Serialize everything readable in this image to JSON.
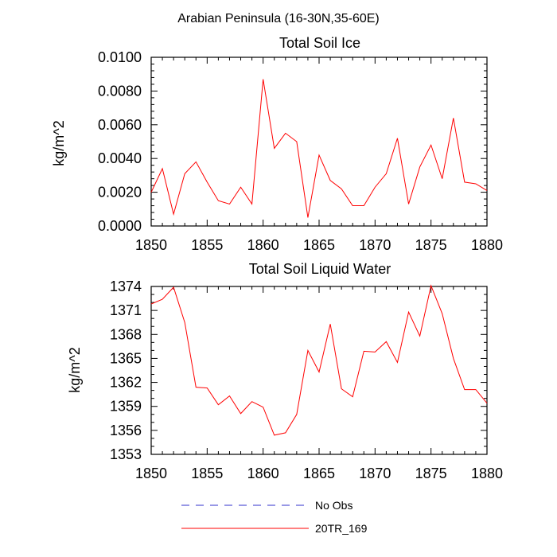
{
  "figure": {
    "suptitle": "Arabian Peninsula (16-30N,35-60E)"
  },
  "legend": {
    "entries": [
      {
        "label": "No Obs",
        "color": "#5a5ad8",
        "dash": "dashed"
      },
      {
        "label": "20TR_169",
        "color": "#ff0000",
        "dash": "solid"
      }
    ]
  },
  "chart_data": [
    {
      "type": "line",
      "title": "Total Soil Ice",
      "xlabel": "",
      "ylabel": "kg/m^2",
      "xlim": [
        1850,
        1880
      ],
      "ylim": [
        0.0,
        0.01
      ],
      "xticks": [
        1850,
        1855,
        1860,
        1865,
        1870,
        1875,
        1880
      ],
      "xtick_labels": [
        "1850",
        "1855",
        "1860",
        "1865",
        "1870",
        "1875",
        "1880"
      ],
      "yticks": [
        0.0,
        0.002,
        0.004,
        0.006,
        0.008,
        0.01
      ],
      "ytick_labels": [
        "0.0000",
        "0.0020",
        "0.0040",
        "0.0060",
        "0.0080",
        "0.0100"
      ],
      "x": [
        1850,
        1851,
        1852,
        1853,
        1854,
        1855,
        1856,
        1857,
        1858,
        1859,
        1860,
        1861,
        1862,
        1863,
        1864,
        1865,
        1866,
        1867,
        1868,
        1869,
        1870,
        1871,
        1872,
        1873,
        1874,
        1875,
        1876,
        1877,
        1878,
        1879,
        1880
      ],
      "series": [
        {
          "name": "20TR_169",
          "color": "#ff0000",
          "values": [
            0.002,
            0.0034,
            0.0007,
            0.0031,
            0.0038,
            0.0026,
            0.0015,
            0.0013,
            0.0023,
            0.0013,
            0.0087,
            0.0046,
            0.0055,
            0.005,
            0.0005,
            0.0042,
            0.0027,
            0.0022,
            0.0012,
            0.0012,
            0.0023,
            0.0031,
            0.0052,
            0.0013,
            0.0035,
            0.0048,
            0.0028,
            0.0064,
            0.0026,
            0.0025,
            0.0021
          ]
        }
      ]
    },
    {
      "type": "line",
      "title": "Total Soil Liquid Water",
      "xlabel": "",
      "ylabel": "kg/m^2",
      "xlim": [
        1850,
        1880
      ],
      "ylim": [
        1353,
        1374
      ],
      "xticks": [
        1850,
        1855,
        1860,
        1865,
        1870,
        1875,
        1880
      ],
      "xtick_labels": [
        "1850",
        "1855",
        "1860",
        "1865",
        "1870",
        "1875",
        "1880"
      ],
      "yticks": [
        1353,
        1356,
        1359,
        1362,
        1365,
        1368,
        1371,
        1374
      ],
      "ytick_labels": [
        "1353",
        "1356",
        "1359",
        "1362",
        "1365",
        "1368",
        "1371",
        "1374"
      ],
      "x": [
        1850,
        1851,
        1852,
        1853,
        1854,
        1855,
        1856,
        1857,
        1858,
        1859,
        1860,
        1861,
        1862,
        1863,
        1864,
        1865,
        1866,
        1867,
        1868,
        1869,
        1870,
        1871,
        1872,
        1873,
        1874,
        1875,
        1876,
        1877,
        1878,
        1879,
        1880
      ],
      "series": [
        {
          "name": "20TR_169",
          "color": "#ff0000",
          "values": [
            1371.8,
            1372.4,
            1373.9,
            1369.5,
            1361.4,
            1361.3,
            1359.2,
            1360.3,
            1358.1,
            1359.6,
            1358.9,
            1355.4,
            1355.7,
            1358.0,
            1366.0,
            1363.3,
            1369.3,
            1361.2,
            1360.2,
            1365.9,
            1365.8,
            1367.1,
            1364.5,
            1370.8,
            1367.8,
            1374.1,
            1370.6,
            1365.0,
            1361.1,
            1361.1,
            1359.4
          ]
        }
      ]
    }
  ]
}
